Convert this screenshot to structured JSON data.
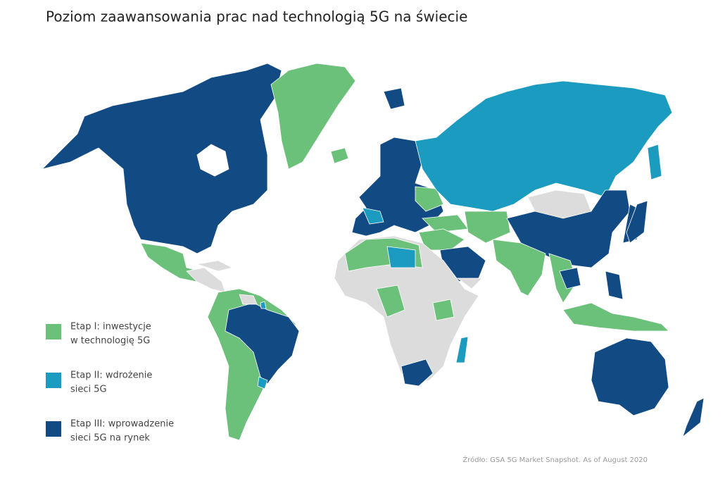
{
  "title": "Poziom zaawansowania prac nad technologią 5G na świecie",
  "legend": [
    {
      "lines": [
        "Etap I: inwestycje",
        "w technologię 5G"
      ],
      "color": "#6cc17a"
    },
    {
      "lines": [
        "Etap II: wdrożenie",
        "sieci 5G"
      ],
      "color": "#1b9bc0"
    },
    {
      "lines": [
        "Etap III: wprowadzenie",
        "sieci 5G na rynek"
      ],
      "color": "#124a84"
    }
  ],
  "source": "Źródło: GSA 5G Market Snapshot. As of August 2020"
}
